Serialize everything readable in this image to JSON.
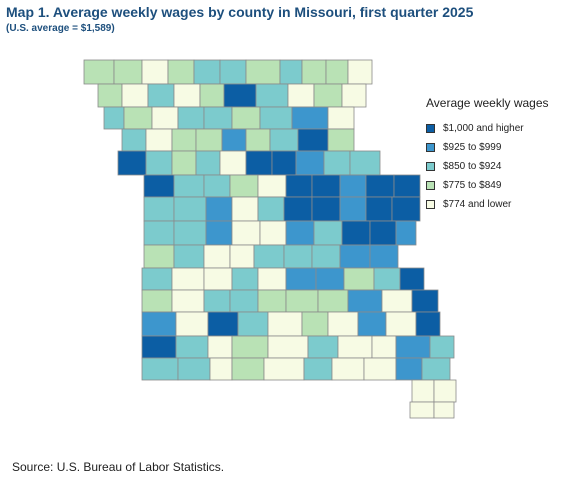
{
  "title": "Map 1. Average weekly wages by county in Missouri, first quarter 2025",
  "subtitle": "(U.S. average = $1,589)",
  "legend": {
    "title": "Average weekly wages",
    "items": [
      {
        "label": "$1,000 and higher",
        "color": "#0c5ea4"
      },
      {
        "label": "$925 to $999",
        "color": "#3d96cd"
      },
      {
        "label": "$850 to $924",
        "color": "#7ccbcd"
      },
      {
        "label": "$775 to $849",
        "color": "#b9e2b5"
      },
      {
        "label": "$774 and lower",
        "color": "#f7fbe4"
      }
    ]
  },
  "source": "Source: U.S. Bureau of Labor Statistics."
}
